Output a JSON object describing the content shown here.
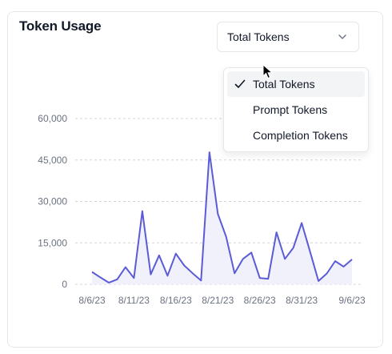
{
  "card": {
    "title": "Token Usage"
  },
  "select": {
    "value": "Total Tokens",
    "options": [
      {
        "label": "Total Tokens",
        "selected": true
      },
      {
        "label": "Prompt Tokens",
        "selected": false
      },
      {
        "label": "Completion Tokens",
        "selected": false
      }
    ]
  },
  "colors": {
    "line": "#5b5bd6",
    "fill": "#eef0fb",
    "grid": "#d1d5db",
    "tick": "#6b7280"
  },
  "chart_data": {
    "type": "area",
    "title": "",
    "xlabel": "",
    "ylabel": "",
    "ylim": [
      0,
      60000
    ],
    "yticks": [
      0,
      15000,
      30000,
      45000,
      60000
    ],
    "ytick_labels": [
      "0",
      "15,000",
      "30,000",
      "45,000",
      "60,000"
    ],
    "xtick_labels": [
      "8/6/23",
      "8/11/23",
      "8/16/23",
      "8/21/23",
      "8/26/23",
      "8/31/23",
      "9/6/23"
    ],
    "grid": true,
    "legend": "none",
    "series": [
      {
        "x": [
          "8/6/23",
          "8/7/23",
          "8/8/23",
          "8/9/23",
          "8/10/23",
          "8/11/23",
          "8/12/23",
          "8/13/23",
          "8/14/23",
          "8/15/23",
          "8/16/23",
          "8/17/23",
          "8/18/23",
          "8/19/23",
          "8/20/23",
          "8/21/23",
          "8/22/23",
          "8/23/23",
          "8/24/23",
          "8/25/23",
          "8/26/23",
          "8/27/23",
          "8/28/23",
          "8/29/23",
          "8/30/23",
          "8/31/23",
          "9/1/23",
          "9/2/23",
          "9/3/23",
          "9/4/23",
          "9/5/23",
          "9/6/23"
        ],
        "values": [
          4500,
          2500,
          600,
          1800,
          6200,
          2300,
          26500,
          3600,
          10500,
          3100,
          11100,
          6800,
          4000,
          1400,
          47800,
          25500,
          17200,
          4000,
          9200,
          11500,
          2300,
          2000,
          18800,
          9200,
          13200,
          22200,
          11800,
          1200,
          3900,
          8400,
          6400,
          9000
        ]
      }
    ]
  }
}
